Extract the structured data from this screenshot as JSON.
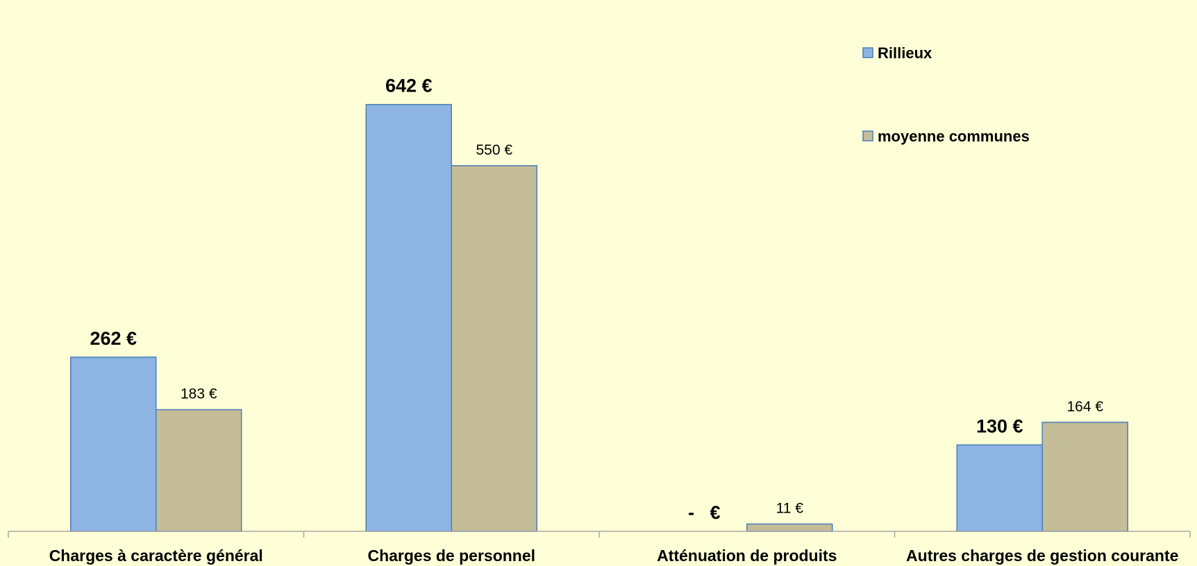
{
  "chart_data": {
    "type": "bar",
    "title": "",
    "xlabel": "",
    "ylabel": "",
    "ylim": [
      0,
      700
    ],
    "categories": [
      "Charges à caractère général",
      "Charges de personnel",
      "Atténuation de produits",
      "Autres charges de gestion courante"
    ],
    "series": [
      {
        "name": "Rillieux",
        "values": [
          262,
          642,
          0,
          130
        ],
        "labels": [
          "262 €",
          "642 €",
          "-   €",
          "130 €"
        ],
        "color": "#8eb4e3",
        "stroke": "#4a7ebb"
      },
      {
        "name": "moyenne communes",
        "values": [
          183,
          550,
          11,
          164
        ],
        "labels": [
          "183 €",
          "550 €",
          "11 €",
          "164 €"
        ],
        "color": "#c4bd97",
        "stroke": "#4a7ebb"
      }
    ],
    "legend_position": "top-right",
    "grid": false
  }
}
